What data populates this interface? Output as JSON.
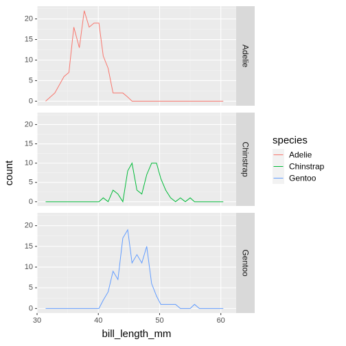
{
  "chart_data": {
    "type": "line",
    "title": "",
    "xlabel": "bill_length_mm",
    "ylabel": "count",
    "xlim": [
      30,
      62.5
    ],
    "ylim": [
      -1.1,
      23.1
    ],
    "x_ticks": [
      30,
      40,
      50,
      60
    ],
    "y_ticks": [
      0,
      5,
      10,
      15,
      20
    ],
    "grid": true,
    "legend": {
      "title": "species",
      "position": "right"
    },
    "x": [
      31.4,
      32.9,
      34.4,
      35.2,
      36.0,
      36.9,
      37.7,
      38.5,
      39.3,
      40.1,
      40.8,
      41.6,
      42.4,
      43.2,
      44.0,
      44.8,
      45.5,
      46.3,
      47.1,
      47.9,
      48.7,
      49.5,
      50.2,
      51.0,
      51.8,
      52.6,
      53.4,
      54.2,
      55.0,
      55.7,
      56.5,
      57.3,
      58.1,
      58.9,
      59.7,
      60.4
    ],
    "series": [
      {
        "name": "Adelie",
        "color": "#F8766D",
        "values": [
          0,
          2,
          6,
          7,
          18,
          13,
          22,
          18,
          19,
          19,
          11,
          8,
          2,
          2,
          2,
          1,
          0,
          0,
          0,
          0,
          0,
          0,
          0,
          0,
          0,
          0,
          0,
          0,
          0,
          0,
          0,
          0,
          0,
          0,
          0,
          0
        ]
      },
      {
        "name": "Chinstrap",
        "color": "#00BA38",
        "values": [
          0,
          0,
          0,
          0,
          0,
          0,
          0,
          0,
          0,
          0,
          1,
          0,
          3,
          2,
          0,
          8,
          10,
          3,
          2,
          7,
          10,
          10,
          6,
          3,
          1,
          0,
          1,
          0,
          1,
          0,
          0,
          0,
          0,
          0,
          0,
          0
        ]
      },
      {
        "name": "Gentoo",
        "color": "#619CFF",
        "values": [
          0,
          0,
          0,
          0,
          0,
          0,
          0,
          0,
          0,
          0,
          2,
          4,
          9,
          7,
          17,
          19,
          11,
          13,
          11,
          15,
          6,
          3,
          1,
          1,
          1,
          1,
          0,
          0,
          0,
          1,
          0,
          0,
          0,
          0,
          0,
          0
        ]
      }
    ]
  }
}
